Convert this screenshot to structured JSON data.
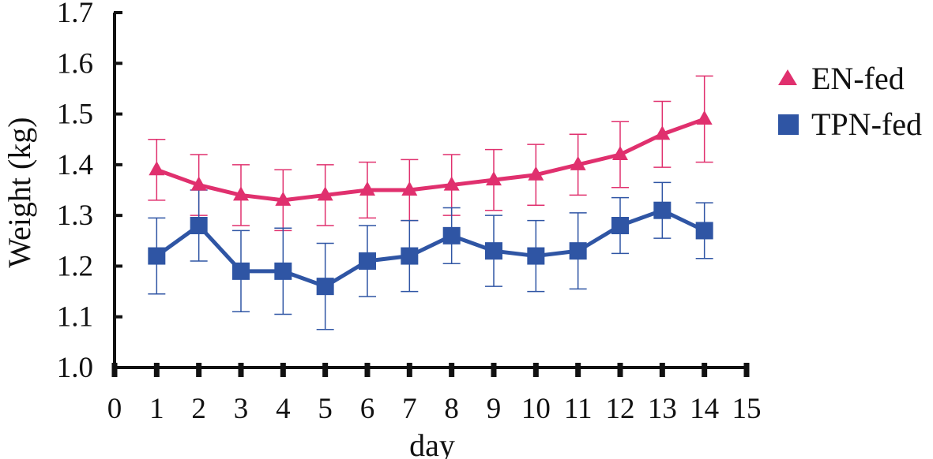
{
  "chart_data": {
    "type": "line",
    "title": "",
    "xlabel": "day",
    "ylabel": "Weight (kg)",
    "xlim": [
      0,
      15
    ],
    "ylim": [
      1.0,
      1.7
    ],
    "x_ticks": [
      0,
      1,
      2,
      3,
      4,
      5,
      6,
      7,
      8,
      9,
      10,
      11,
      12,
      13,
      14,
      15
    ],
    "y_ticks": [
      "1.0",
      "1.1",
      "1.2",
      "1.3",
      "1.4",
      "1.5",
      "1.6",
      "1.7"
    ],
    "grid": false,
    "legend_position": "right",
    "series": [
      {
        "name": "EN-fed",
        "color": "#e0306e",
        "marker": "triangle",
        "x": [
          1,
          2,
          3,
          4,
          5,
          6,
          7,
          8,
          9,
          10,
          11,
          12,
          13,
          14
        ],
        "values": [
          1.39,
          1.36,
          1.34,
          1.33,
          1.34,
          1.35,
          1.35,
          1.36,
          1.37,
          1.38,
          1.4,
          1.42,
          1.46,
          1.49
        ],
        "error": [
          0.06,
          0.06,
          0.06,
          0.06,
          0.06,
          0.055,
          0.06,
          0.06,
          0.06,
          0.06,
          0.06,
          0.065,
          0.065,
          0.085
        ]
      },
      {
        "name": "TPN-fed",
        "color": "#2f55a4",
        "marker": "square",
        "x": [
          1,
          2,
          3,
          4,
          5,
          6,
          7,
          8,
          9,
          10,
          11,
          12,
          13,
          14
        ],
        "values": [
          1.22,
          1.28,
          1.19,
          1.19,
          1.16,
          1.21,
          1.22,
          1.26,
          1.23,
          1.22,
          1.23,
          1.28,
          1.31,
          1.27
        ],
        "error": [
          0.075,
          0.07,
          0.08,
          0.085,
          0.085,
          0.07,
          0.07,
          0.055,
          0.07,
          0.07,
          0.075,
          0.055,
          0.055,
          0.055
        ]
      }
    ]
  }
}
